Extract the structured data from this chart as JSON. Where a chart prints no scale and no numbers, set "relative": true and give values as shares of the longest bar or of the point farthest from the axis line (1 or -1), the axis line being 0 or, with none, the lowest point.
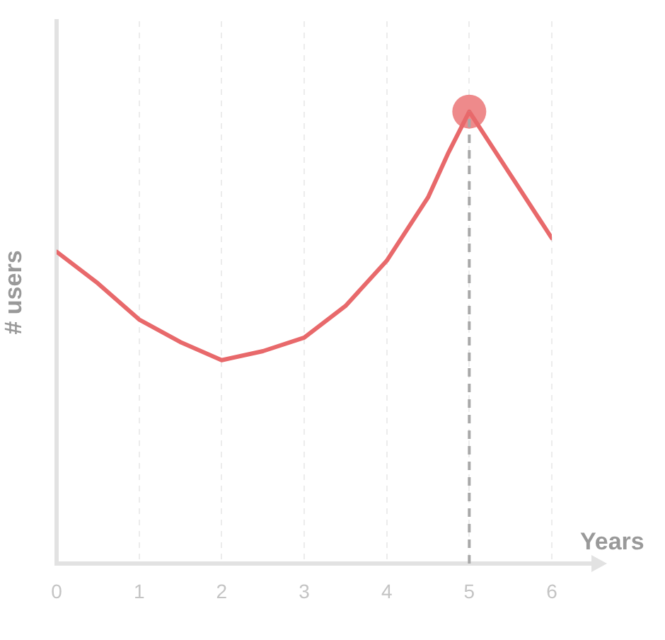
{
  "chart_data": {
    "type": "line",
    "relative": true,
    "xlabel": "Years",
    "ylabel": "# users",
    "x": [
      0,
      0.5,
      1,
      1.5,
      2,
      2.5,
      3,
      3.5,
      4,
      4.5,
      4.75,
      5,
      5.25,
      5.5,
      6
    ],
    "series": [
      {
        "type": "line",
        "color": "#e8696b",
        "marker": "none",
        "values": [
          0.69,
          0.62,
          0.54,
          0.49,
          0.45,
          0.47,
          0.5,
          0.57,
          0.67,
          0.81,
          0.91,
          1,
          0.93,
          0.86,
          0.72
        ]
      },
      {
        "type": "scatter",
        "color": "#ee8a8b",
        "marker": "circle",
        "x": [
          5
        ],
        "values": [
          1
        ]
      }
    ],
    "xlim": [
      0,
      6
    ],
    "xticks": [
      0,
      1,
      2,
      3,
      4,
      5,
      6
    ],
    "grid": "x",
    "tick_labels": "x",
    "ref_lines": [
      {
        "axis": "x",
        "value": 5,
        "color": "#a8a8a8",
        "line_style": "dashed"
      }
    ]
  }
}
